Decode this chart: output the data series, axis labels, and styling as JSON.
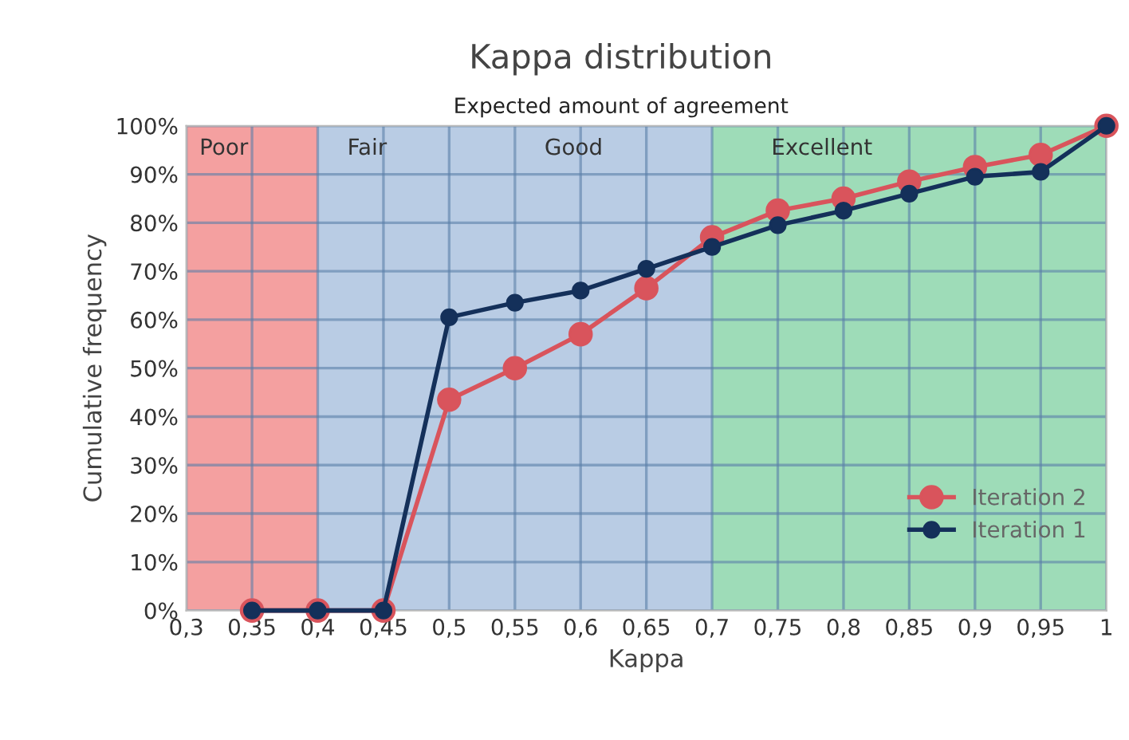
{
  "chart_data": {
    "type": "line",
    "title": "Kappa distribution",
    "subtitle": "Expected amount of agreement",
    "xlabel": "Kappa",
    "ylabel": "Cumulative frequency",
    "x": [
      0.35,
      0.4,
      0.45,
      0.5,
      0.55,
      0.6,
      0.65,
      0.7,
      0.75,
      0.8,
      0.85,
      0.9,
      0.95,
      1
    ],
    "series": [
      {
        "name": "Iteration 2",
        "color": "#d9545c",
        "values": [
          0,
          0,
          0,
          43.5,
          50,
          57,
          66.5,
          77,
          82.5,
          85,
          88.5,
          91.5,
          94,
          100
        ]
      },
      {
        "name": "Iteration 1",
        "color": "#14305a",
        "values": [
          0,
          0,
          0,
          60.5,
          63.5,
          66,
          70.5,
          75,
          79.5,
          82.5,
          86,
          89.5,
          90.5,
          100
        ]
      }
    ],
    "bands": [
      {
        "axis": "x",
        "from": 0.3,
        "to": 0.4,
        "label": "Poor",
        "color": "#f4a0a0"
      },
      {
        "axis": "x",
        "from": 0.4,
        "to": 0.55,
        "label": "Fair",
        "color": "#b9cce4"
      },
      {
        "axis": "x",
        "from": 0.55,
        "to": 0.7,
        "label": "Good",
        "color": "#b9cce4"
      },
      {
        "axis": "x",
        "from": 0.7,
        "to": 1.0,
        "label": "Excellent",
        "color": "#9edcb8"
      }
    ],
    "xlim": [
      0.3,
      1.0
    ],
    "xticks": [
      {
        "value": 0.3,
        "label": "0,3"
      },
      {
        "value": 0.35,
        "label": "0,35"
      },
      {
        "value": 0.4,
        "label": "0,4"
      },
      {
        "value": 0.45,
        "label": "0,45"
      },
      {
        "value": 0.5,
        "label": "0,5"
      },
      {
        "value": 0.55,
        "label": "0,55"
      },
      {
        "value": 0.6,
        "label": "0,6"
      },
      {
        "value": 0.65,
        "label": "0,65"
      },
      {
        "value": 0.7,
        "label": "0,7"
      },
      {
        "value": 0.75,
        "label": "0,75"
      },
      {
        "value": 0.8,
        "label": "0,8"
      },
      {
        "value": 0.85,
        "label": "0,85"
      },
      {
        "value": 0.9,
        "label": "0,9"
      },
      {
        "value": 0.95,
        "label": "0,95"
      },
      {
        "value": 1,
        "label": "1"
      }
    ],
    "ylim": [
      0,
      100
    ],
    "yticks": [
      {
        "value": 0,
        "label": "0%"
      },
      {
        "value": 10,
        "label": "10%"
      },
      {
        "value": 20,
        "label": "20%"
      },
      {
        "value": 30,
        "label": "30%"
      },
      {
        "value": 40,
        "label": "40%"
      },
      {
        "value": 50,
        "label": "50%"
      },
      {
        "value": 60,
        "label": "60%"
      },
      {
        "value": 70,
        "label": "70%"
      },
      {
        "value": 80,
        "label": "80%"
      },
      {
        "value": 90,
        "label": "90%"
      },
      {
        "value": 100,
        "label": "100%"
      }
    ],
    "grid": true,
    "legend": "lower right",
    "marker": "circle",
    "line_style": "solid"
  }
}
